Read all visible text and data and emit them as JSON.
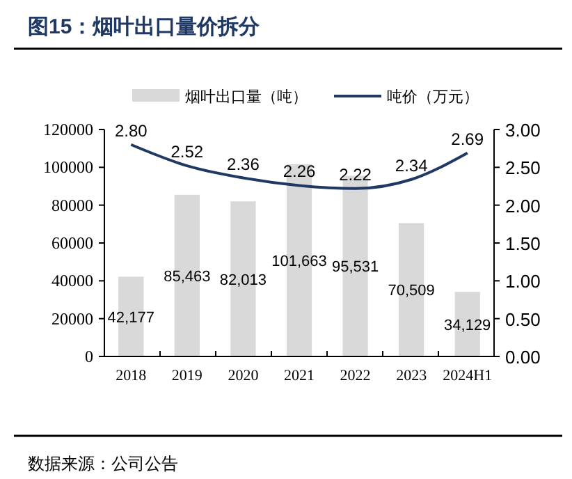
{
  "chart_data": {
    "type": "bar",
    "title": "图15：烟叶出口量价拆分",
    "annotations": [
      "数据来源：公司公告"
    ],
    "categories": [
      "2018",
      "2019",
      "2020",
      "2021",
      "2022",
      "2023",
      "2024H1"
    ],
    "series": [
      {
        "name": "烟叶出口量（吨）",
        "color": "#d9d9d9",
        "values": [
          42177,
          85463,
          82013,
          101663,
          95531,
          70509,
          34129
        ]
      },
      {
        "name": "吨价（万元）",
        "type": "line",
        "axis": "y2",
        "color": "#1f3864",
        "values": [
          2.8,
          2.52,
          2.36,
          2.26,
          2.22,
          2.34,
          2.69
        ]
      }
    ],
    "ylim": [
      0,
      120000
    ],
    "yticks": [
      0,
      20000,
      40000,
      60000,
      80000,
      100000,
      120000
    ],
    "y2lim": [
      0,
      3
    ],
    "y2ticks": [
      {
        "value": 0,
        "label": "0.00"
      },
      {
        "value": 0.5,
        "label": "0.50"
      },
      {
        "value": 1,
        "label": "1.00"
      },
      {
        "value": 1.5,
        "label": "1.50"
      },
      {
        "value": 2,
        "label": "2.00"
      },
      {
        "value": 2.5,
        "label": "2.50"
      },
      {
        "value": 3,
        "label": "3.00"
      }
    ],
    "value_labels": [
      [
        "42,177",
        "85,463",
        "82,013",
        "101,663",
        "95,531",
        "70,509",
        "34,129"
      ],
      [
        "2.80",
        "2.52",
        "2.36",
        "2.26",
        "2.22",
        "2.34",
        "2.69"
      ]
    ],
    "legend": "top",
    "marker": "none"
  }
}
